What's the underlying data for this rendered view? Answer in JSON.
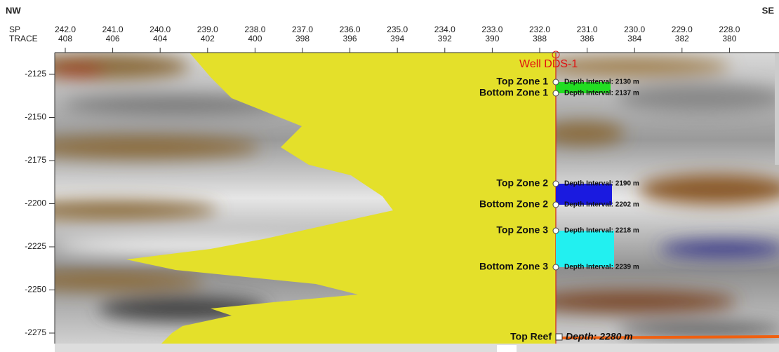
{
  "corners": {
    "left": "NW",
    "right": "SE"
  },
  "axis": {
    "sp_label": "SP",
    "trace_label": "TRACE",
    "sp": [
      "242.0",
      "241.0",
      "240.0",
      "239.0",
      "238.0",
      "237.0",
      "236.0",
      "235.0",
      "234.0",
      "233.0",
      "232.0",
      "231.0",
      "230.0",
      "229.0",
      "228.0"
    ],
    "trace": [
      "408",
      "406",
      "404",
      "402",
      "400",
      "398",
      "396",
      "394",
      "392",
      "390",
      "388",
      "386",
      "384",
      "382",
      "380"
    ]
  },
  "depth_ticks": [
    -2125,
    -2150,
    -2175,
    -2200,
    -2225,
    -2250,
    -2275
  ],
  "well": {
    "name": "Well DDS-1"
  },
  "zones": [
    {
      "label": "Top Zone 1",
      "interval": "Depth Interval: 2130 m"
    },
    {
      "label": "Bottom Zone 1",
      "interval": "Depth Interval: 2137 m"
    },
    {
      "label": "Top Zone 2",
      "interval": "Depth Interval: 2190 m"
    },
    {
      "label": "Bottom Zone 2",
      "interval": "Depth Interval: 2202 m"
    },
    {
      "label": "Top Zone 3",
      "interval": "Depth Interval: 2218 m"
    },
    {
      "label": "Bottom Zone 3",
      "interval": "Depth Interval: 2239 m"
    }
  ],
  "reef": {
    "label": "Top Reef",
    "depth": "Depth: 2280 m"
  }
}
